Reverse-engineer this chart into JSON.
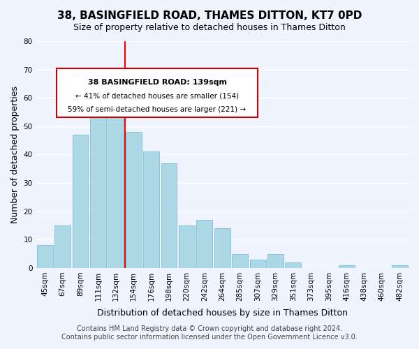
{
  "title": "38, BASINGFIELD ROAD, THAMES DITTON, KT7 0PD",
  "subtitle": "Size of property relative to detached houses in Thames Ditton",
  "xlabel": "Distribution of detached houses by size in Thames Ditton",
  "ylabel": "Number of detached properties",
  "bar_labels": [
    "45sqm",
    "67sqm",
    "89sqm",
    "111sqm",
    "132sqm",
    "154sqm",
    "176sqm",
    "198sqm",
    "220sqm",
    "242sqm",
    "264sqm",
    "285sqm",
    "307sqm",
    "329sqm",
    "351sqm",
    "373sqm",
    "395sqm",
    "416sqm",
    "438sqm",
    "460sqm",
    "482sqm"
  ],
  "bar_values": [
    8,
    15,
    47,
    62,
    59,
    48,
    41,
    37,
    15,
    17,
    14,
    5,
    3,
    5,
    2,
    0,
    0,
    1,
    0,
    0,
    1
  ],
  "bar_color": "#add8e6",
  "bar_edge_color": "#6ab4d4",
  "highlight_color": "#ff0000",
  "highlight_index": 4,
  "vline_x": 4.5,
  "ylim": [
    0,
    80
  ],
  "yticks": [
    0,
    10,
    20,
    30,
    40,
    50,
    60,
    70,
    80
  ],
  "annotation_title": "38 BASINGFIELD ROAD: 139sqm",
  "annotation_line1": "← 41% of detached houses are smaller (154)",
  "annotation_line2": "59% of semi-detached houses are larger (221) →",
  "annotation_box_color": "#ffffff",
  "annotation_box_edge": "#cc0000",
  "footer_line1": "Contains HM Land Registry data © Crown copyright and database right 2024.",
  "footer_line2": "Contains public sector information licensed under the Open Government Licence v3.0.",
  "bg_color": "#f0f4ff",
  "grid_color": "#ffffff",
  "title_fontsize": 11,
  "subtitle_fontsize": 9,
  "axis_label_fontsize": 9,
  "tick_fontsize": 7.5,
  "footer_fontsize": 7
}
